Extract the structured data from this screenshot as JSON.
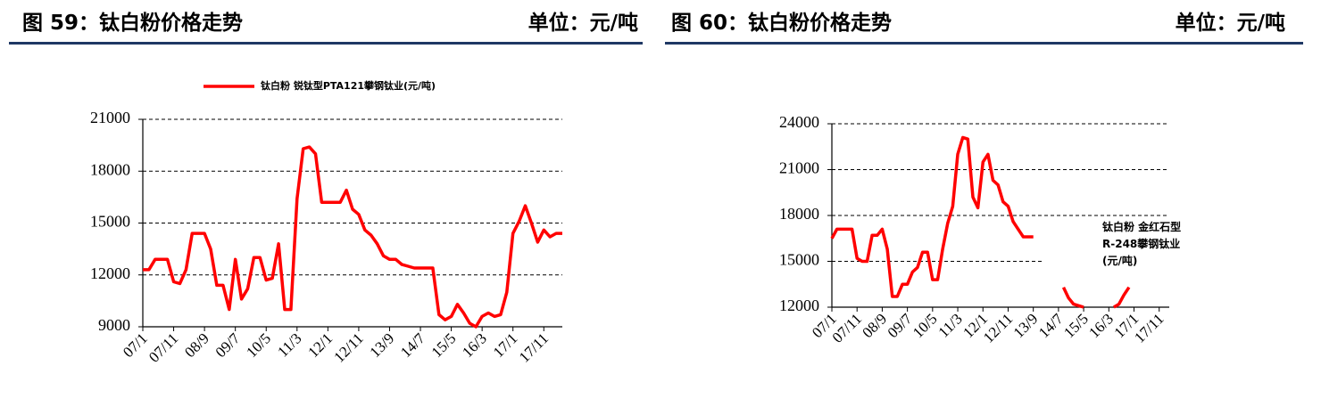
{
  "chart_data": [
    {
      "type": "line",
      "title": "图 59：钛白粉价格走势",
      "unit": "单位：元/吨",
      "categories": [
        "07/1",
        null,
        null,
        null,
        null,
        "07/11",
        null,
        null,
        null,
        null,
        "08/9",
        null,
        null,
        null,
        null,
        "09/7",
        null,
        null,
        null,
        null,
        "10/5",
        null,
        null,
        null,
        null,
        "11/3",
        null,
        null,
        null,
        null,
        "12/1",
        null,
        null,
        null,
        null,
        "12/11",
        null,
        null,
        null,
        null,
        "13/9",
        null,
        null,
        null,
        null,
        "14/7",
        null,
        null,
        null,
        null,
        "15/5",
        null,
        null,
        null,
        null,
        "16/3",
        null,
        null,
        null,
        null,
        "17/1",
        null,
        null,
        null,
        null,
        "17/11",
        null,
        null,
        null
      ],
      "series": [
        {
          "name": "钛白粉 锐钛型PTA121攀钢钛业(元/吨)",
          "color": "#ff0000",
          "values": [
            12300,
            12300,
            12900,
            12900,
            12900,
            11600,
            11500,
            12300,
            14400,
            14400,
            14400,
            13500,
            11400,
            11400,
            10000,
            12900,
            10600,
            11200,
            13000,
            13000,
            11700,
            11800,
            13800,
            10000,
            10000,
            16400,
            19300,
            19400,
            19000,
            16200,
            16200,
            16200,
            16200,
            16900,
            15800,
            15500,
            14600,
            14300,
            13800,
            13100,
            12900,
            12900,
            12600,
            12500,
            12400,
            12400,
            12400,
            12400,
            9700,
            9400,
            9600,
            10300,
            9800,
            9200,
            9000,
            9600,
            9800,
            9600,
            9700,
            11000,
            14400,
            15100,
            16000,
            15000,
            13900,
            14600,
            14200,
            14400,
            14400
          ]
        }
      ],
      "ylim": [
        9000,
        21000
      ],
      "yticks": [
        9000,
        12000,
        15000,
        18000,
        21000
      ],
      "grid": true,
      "legend": "top"
    },
    {
      "type": "line",
      "title": "图 60：钛白粉价格走势",
      "unit": "单位：元/吨",
      "categories": [
        "07/1",
        null,
        null,
        null,
        null,
        "07/11",
        null,
        null,
        null,
        null,
        "08/9",
        null,
        null,
        null,
        null,
        "09/7",
        null,
        null,
        null,
        null,
        "10/5",
        null,
        null,
        null,
        null,
        "11/3",
        null,
        null,
        null,
        null,
        "12/1",
        null,
        null,
        null,
        null,
        "12/11",
        null,
        null,
        null,
        null,
        "13/9",
        null,
        null,
        null,
        null,
        "14/7",
        null,
        null,
        null,
        null,
        "15/5",
        null,
        null,
        null,
        null,
        "16/3",
        null,
        null,
        null,
        null,
        "17/1",
        null,
        null,
        null,
        null,
        "17/11",
        null,
        null
      ],
      "series": [
        {
          "name": "钛白粉 金红石型R-248攀钢钛业(元/吨)",
          "color": "#ff0000",
          "values": [
            16500,
            17100,
            17100,
            17100,
            17100,
            15200,
            15000,
            15000,
            16700,
            16700,
            17100,
            15800,
            12700,
            12700,
            13500,
            13500,
            14300,
            14600,
            15600,
            15600,
            13800,
            13800,
            15800,
            17500,
            18600,
            22000,
            23100,
            23000,
            19200,
            18500,
            21500,
            22000,
            20300,
            20000,
            18900,
            18600,
            17600,
            17100,
            16600,
            16600,
            16600,
            null,
            null,
            null,
            null,
            null,
            13300,
            12600,
            12200,
            12100,
            12000,
            null,
            null,
            null,
            null,
            null,
            12000,
            12200,
            12800,
            13300,
            null,
            null,
            null,
            null,
            null,
            null,
            null,
            null
          ]
        }
      ],
      "ylim": [
        12000,
        24000
      ],
      "yticks": [
        12000,
        15000,
        18000,
        21000,
        24000
      ],
      "grid": true,
      "legend": "right"
    }
  ]
}
